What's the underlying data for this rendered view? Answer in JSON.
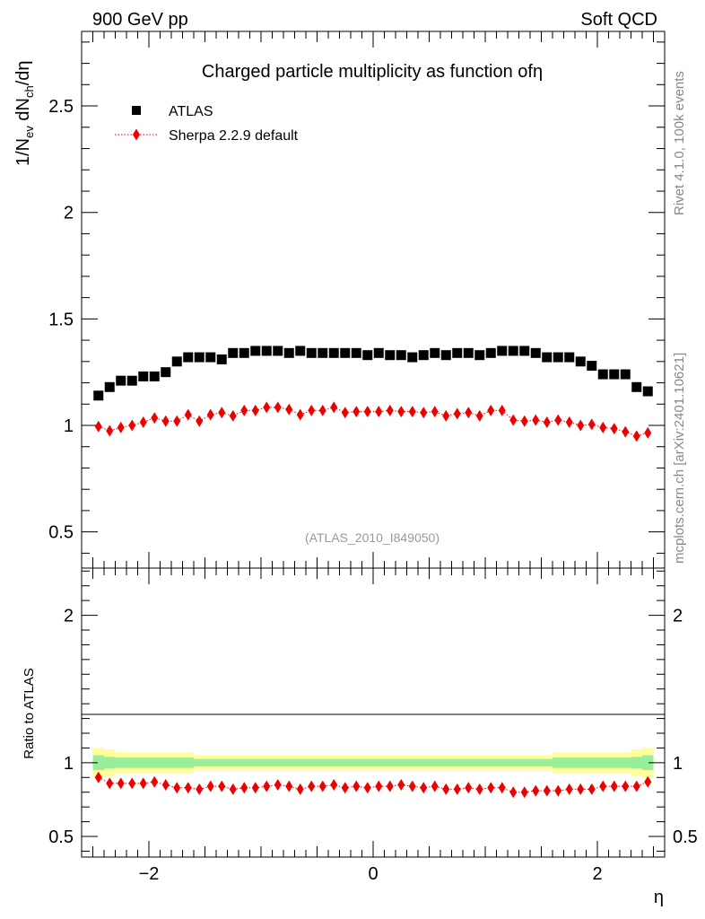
{
  "header": {
    "left": "900 GeV pp",
    "right": "Soft QCD"
  },
  "side": {
    "rivet": "Rivet 4.1.0,  100k events",
    "mcplots": "mcplots.cern.ch [arXiv:2401.10621]"
  },
  "chart_data": [
    {
      "type": "scatter",
      "panel": "main",
      "title": "Charged particle multiplicity as function ofη",
      "analysis_id": "(ATLAS_2010_I849050)",
      "ylabel": "1/N_ev dN_ch/dη",
      "xlim": [
        -2.6,
        2.6
      ],
      "ylim": [
        0.33,
        2.85
      ],
      "yticks": [
        "0.5",
        "1",
        "1.5",
        "2",
        "2.5"
      ],
      "legend": [
        "ATLAS",
        "Sherpa 2.2.9 default"
      ],
      "legend_position": "top-left",
      "x": [
        -2.45,
        -2.35,
        -2.25,
        -2.15,
        -2.05,
        -1.95,
        -1.85,
        -1.75,
        -1.65,
        -1.55,
        -1.45,
        -1.35,
        -1.25,
        -1.15,
        -1.05,
        -0.95,
        -0.85,
        -0.75,
        -0.65,
        -0.55,
        -0.45,
        -0.35,
        -0.25,
        -0.15,
        -0.05,
        0.05,
        0.15,
        0.25,
        0.35,
        0.45,
        0.55,
        0.65,
        0.75,
        0.85,
        0.95,
        1.05,
        1.15,
        1.25,
        1.35,
        1.45,
        1.55,
        1.65,
        1.75,
        1.85,
        1.95,
        2.05,
        2.15,
        2.25,
        2.35,
        2.45
      ],
      "series": [
        {
          "name": "ATLAS",
          "values": [
            1.14,
            1.18,
            1.21,
            1.21,
            1.23,
            1.23,
            1.25,
            1.3,
            1.32,
            1.32,
            1.32,
            1.31,
            1.34,
            1.34,
            1.35,
            1.35,
            1.35,
            1.34,
            1.35,
            1.34,
            1.34,
            1.34,
            1.34,
            1.34,
            1.33,
            1.34,
            1.33,
            1.33,
            1.32,
            1.33,
            1.34,
            1.33,
            1.34,
            1.34,
            1.33,
            1.34,
            1.35,
            1.35,
            1.35,
            1.34,
            1.32,
            1.32,
            1.32,
            1.3,
            1.28,
            1.24,
            1.24,
            1.24,
            1.18,
            1.16
          ]
        },
        {
          "name": "Sherpa 2.2.9 default",
          "values": [
            0.995,
            0.975,
            0.99,
            1.0,
            1.015,
            1.035,
            1.02,
            1.02,
            1.05,
            1.02,
            1.05,
            1.06,
            1.045,
            1.07,
            1.07,
            1.085,
            1.085,
            1.075,
            1.05,
            1.07,
            1.07,
            1.085,
            1.06,
            1.065,
            1.065,
            1.065,
            1.07,
            1.065,
            1.065,
            1.06,
            1.065,
            1.045,
            1.055,
            1.06,
            1.045,
            1.07,
            1.07,
            1.025,
            1.02,
            1.025,
            1.015,
            1.025,
            1.015,
            1.0,
            1.005,
            0.99,
            0.985,
            0.97,
            0.95,
            0.965
          ]
        }
      ]
    },
    {
      "type": "scatter",
      "panel": "ratio",
      "ylabel": "Ratio to ATLAS",
      "xlabel": "η",
      "xlim": [
        -2.6,
        2.6
      ],
      "ylim": [
        0.36,
        2.32
      ],
      "xticks": [
        "−2",
        "0",
        "2"
      ],
      "yticks": [
        "0.5",
        "1",
        "2"
      ],
      "x": [
        -2.45,
        -2.35,
        -2.25,
        -2.15,
        -2.05,
        -1.95,
        -1.85,
        -1.75,
        -1.65,
        -1.55,
        -1.45,
        -1.35,
        -1.25,
        -1.15,
        -1.05,
        -0.95,
        -0.85,
        -0.75,
        -0.65,
        -0.55,
        -0.45,
        -0.35,
        -0.25,
        -0.15,
        -0.05,
        0.05,
        0.15,
        0.25,
        0.35,
        0.45,
        0.55,
        0.65,
        0.75,
        0.85,
        0.95,
        1.05,
        1.15,
        1.25,
        1.35,
        1.45,
        1.55,
        1.65,
        1.75,
        1.85,
        1.95,
        2.05,
        2.15,
        2.25,
        2.35,
        2.45
      ],
      "series": [
        {
          "name": "Sherpa 2.2.9 default / ATLAS",
          "values": [
            0.9,
            0.86,
            0.86,
            0.86,
            0.86,
            0.87,
            0.85,
            0.83,
            0.83,
            0.82,
            0.84,
            0.84,
            0.82,
            0.83,
            0.83,
            0.84,
            0.85,
            0.84,
            0.82,
            0.84,
            0.84,
            0.85,
            0.83,
            0.84,
            0.83,
            0.84,
            0.84,
            0.85,
            0.84,
            0.83,
            0.84,
            0.82,
            0.82,
            0.83,
            0.82,
            0.83,
            0.83,
            0.8,
            0.8,
            0.81,
            0.81,
            0.81,
            0.82,
            0.82,
            0.82,
            0.84,
            0.84,
            0.84,
            0.84,
            0.87
          ]
        }
      ],
      "bands": {
        "x_edges": [
          -2.5,
          -2.4,
          -2.3,
          -1.6,
          1.6,
          2.3,
          2.4,
          2.5
        ],
        "stat": [
          0.05,
          0.04,
          0.035,
          0.025,
          0.035,
          0.04,
          0.05
        ],
        "total": [
          0.1,
          0.09,
          0.07,
          0.05,
          0.07,
          0.09,
          0.1
        ]
      }
    }
  ]
}
